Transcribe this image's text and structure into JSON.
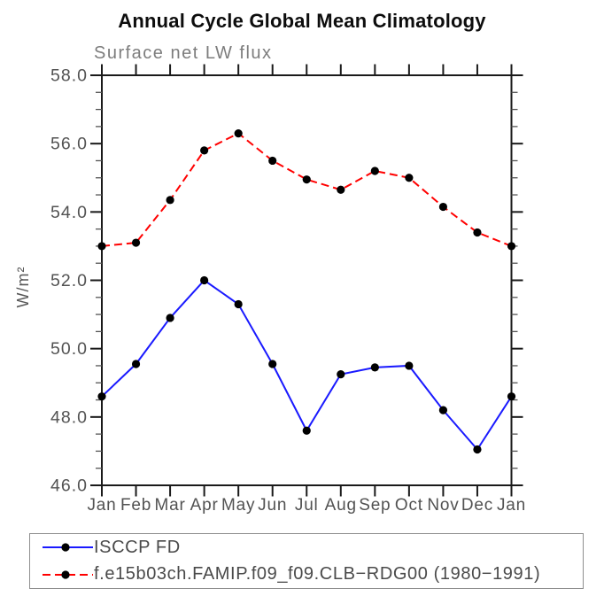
{
  "header": {
    "title": "Annual Cycle Global Mean Climatology",
    "subtitle": "Surface net LW flux"
  },
  "chart_data": {
    "type": "line",
    "title": "Annual Cycle Global Mean Climatology",
    "subtitle": "Surface net LW flux",
    "ylabel": "W/m²",
    "xlabel": "",
    "categories": [
      "Jan",
      "Feb",
      "Mar",
      "Apr",
      "May",
      "Jun",
      "Jul",
      "Aug",
      "Sep",
      "Oct",
      "Nov",
      "Dec",
      "Jan"
    ],
    "series": [
      {
        "name": "ISCCP FD",
        "color": "#1a1aff",
        "line_style": "solid",
        "marker": "filled-circle",
        "marker_color": "#000000",
        "values": [
          48.6,
          49.55,
          50.9,
          52.0,
          51.3,
          49.55,
          47.6,
          49.25,
          49.45,
          49.5,
          48.2,
          47.05,
          48.6
        ]
      },
      {
        "name": "f.e15b03ch.FAMIP.f09_f09.CLB−RDG00 (1980−1991)",
        "color": "#ff0000",
        "line_style": "dashed",
        "marker": "filled-circle",
        "marker_color": "#000000",
        "values": [
          53.0,
          53.1,
          54.35,
          55.8,
          56.3,
          55.5,
          54.95,
          54.65,
          55.2,
          55.0,
          54.15,
          53.4,
          53.0
        ]
      }
    ],
    "ylim": [
      46.0,
      58.0
    ],
    "yticks": [
      46.0,
      48.0,
      50.0,
      52.0,
      54.0,
      56.0,
      58.0
    ],
    "ytick_label_format": "one-decimal",
    "minor_tick_interval": 0.5,
    "grid": false,
    "legend_position": "bottom-left",
    "styles": {
      "axis_color": "#1a1a1a",
      "minor_tick_color": "#555555",
      "tick_label_color": "#525252",
      "month_label_color": "#525252",
      "marker_radius": 4.6,
      "dash_pattern": "9,5"
    }
  }
}
